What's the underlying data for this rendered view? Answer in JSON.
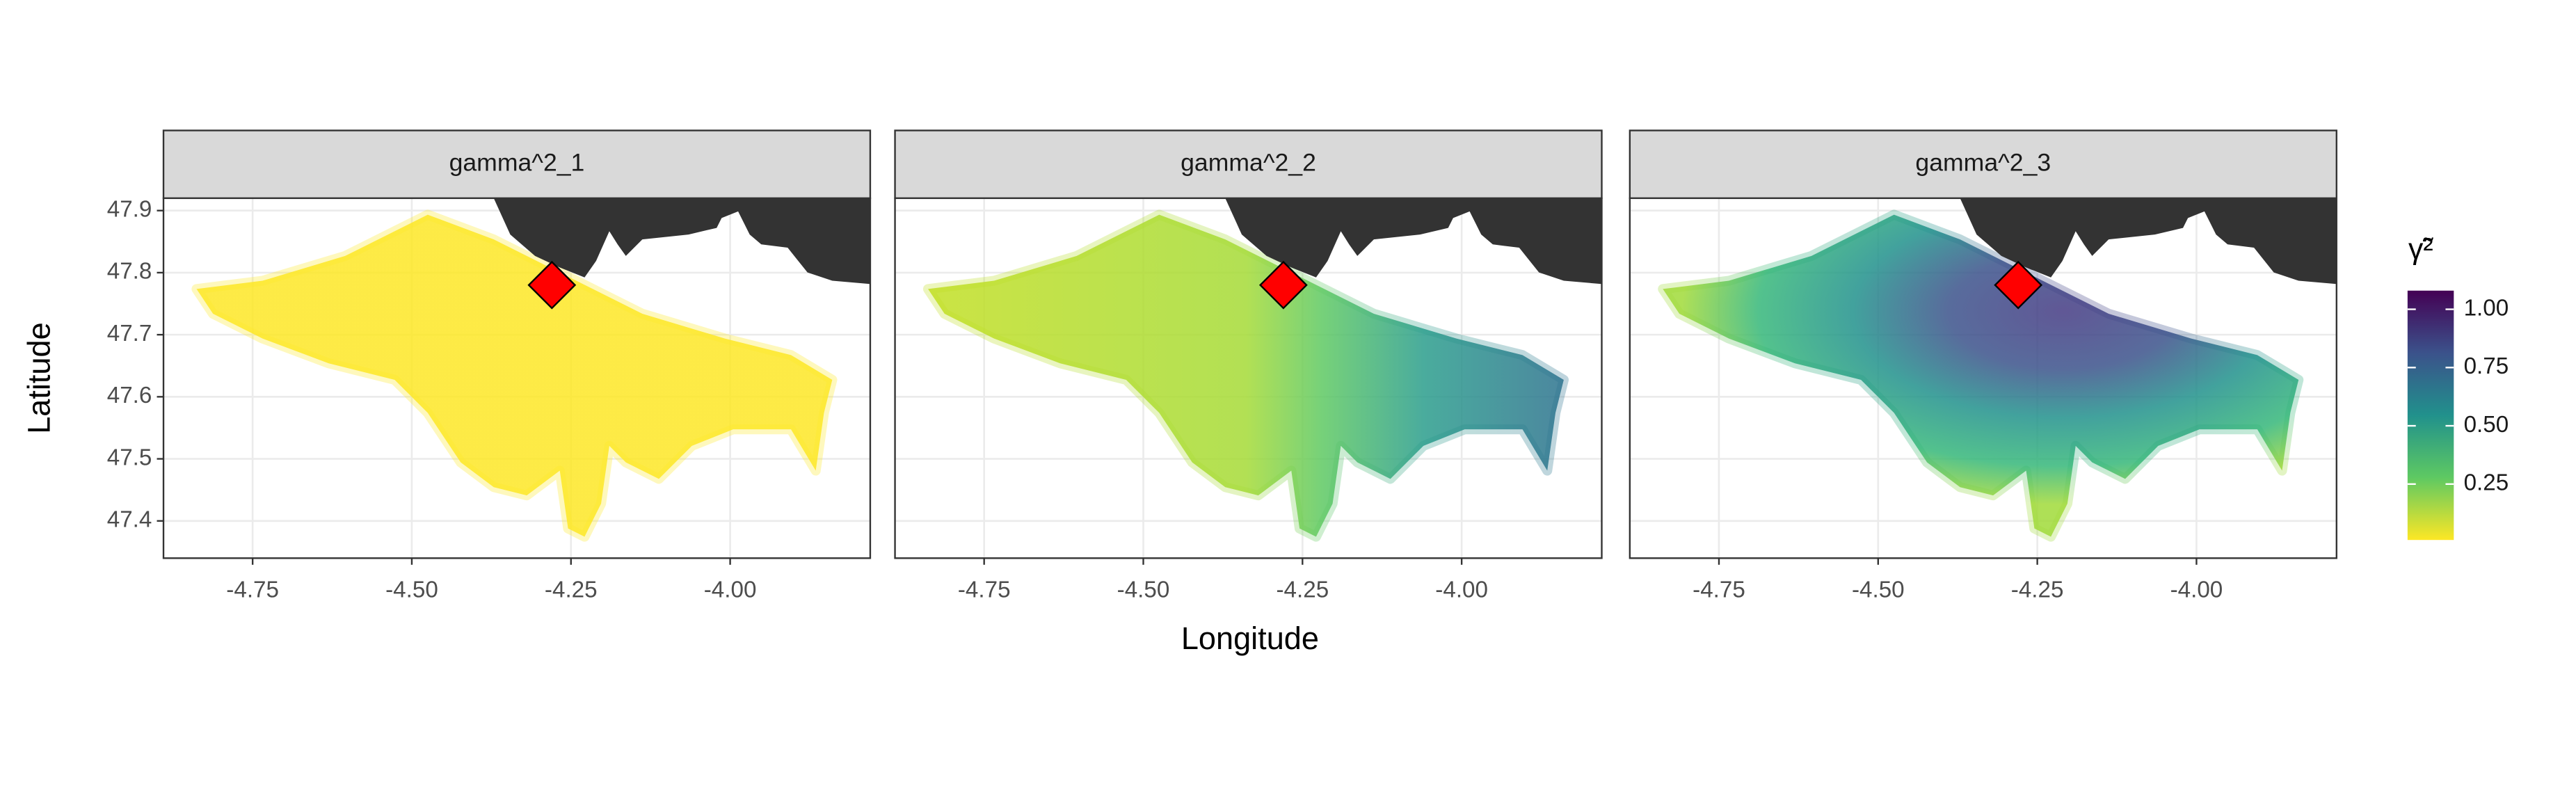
{
  "chart_data": {
    "type": "map",
    "facets": [
      "gamma^2_1",
      "gamma^2_2",
      "gamma^2_3"
    ],
    "x_label": "Longitude",
    "y_label": "Latitude",
    "xlim": [
      -4.89,
      -3.78
    ],
    "xticks": [
      -4.75,
      {
        "value": -4.5,
        "label": "-4.50"
      },
      -4.25,
      {
        "value": -4,
        "label": "-4.00"
      }
    ],
    "ylim": [
      47.34,
      47.92
    ],
    "yticks": [
      47.4,
      47.5,
      47.6,
      47.7,
      47.8,
      47.9
    ],
    "grid": true,
    "marker": {
      "x": -4.28,
      "y": 47.78,
      "color": "#ff0000"
    },
    "colorbar": {
      "title": "γ̃²",
      "lim": [
        0.01,
        1.08
      ],
      "ticks": [
        {
          "value": 1,
          "label": "1.00"
        },
        0.75,
        {
          "value": 0.5,
          "label": "0.50"
        },
        0.25
      ]
    }
  }
}
